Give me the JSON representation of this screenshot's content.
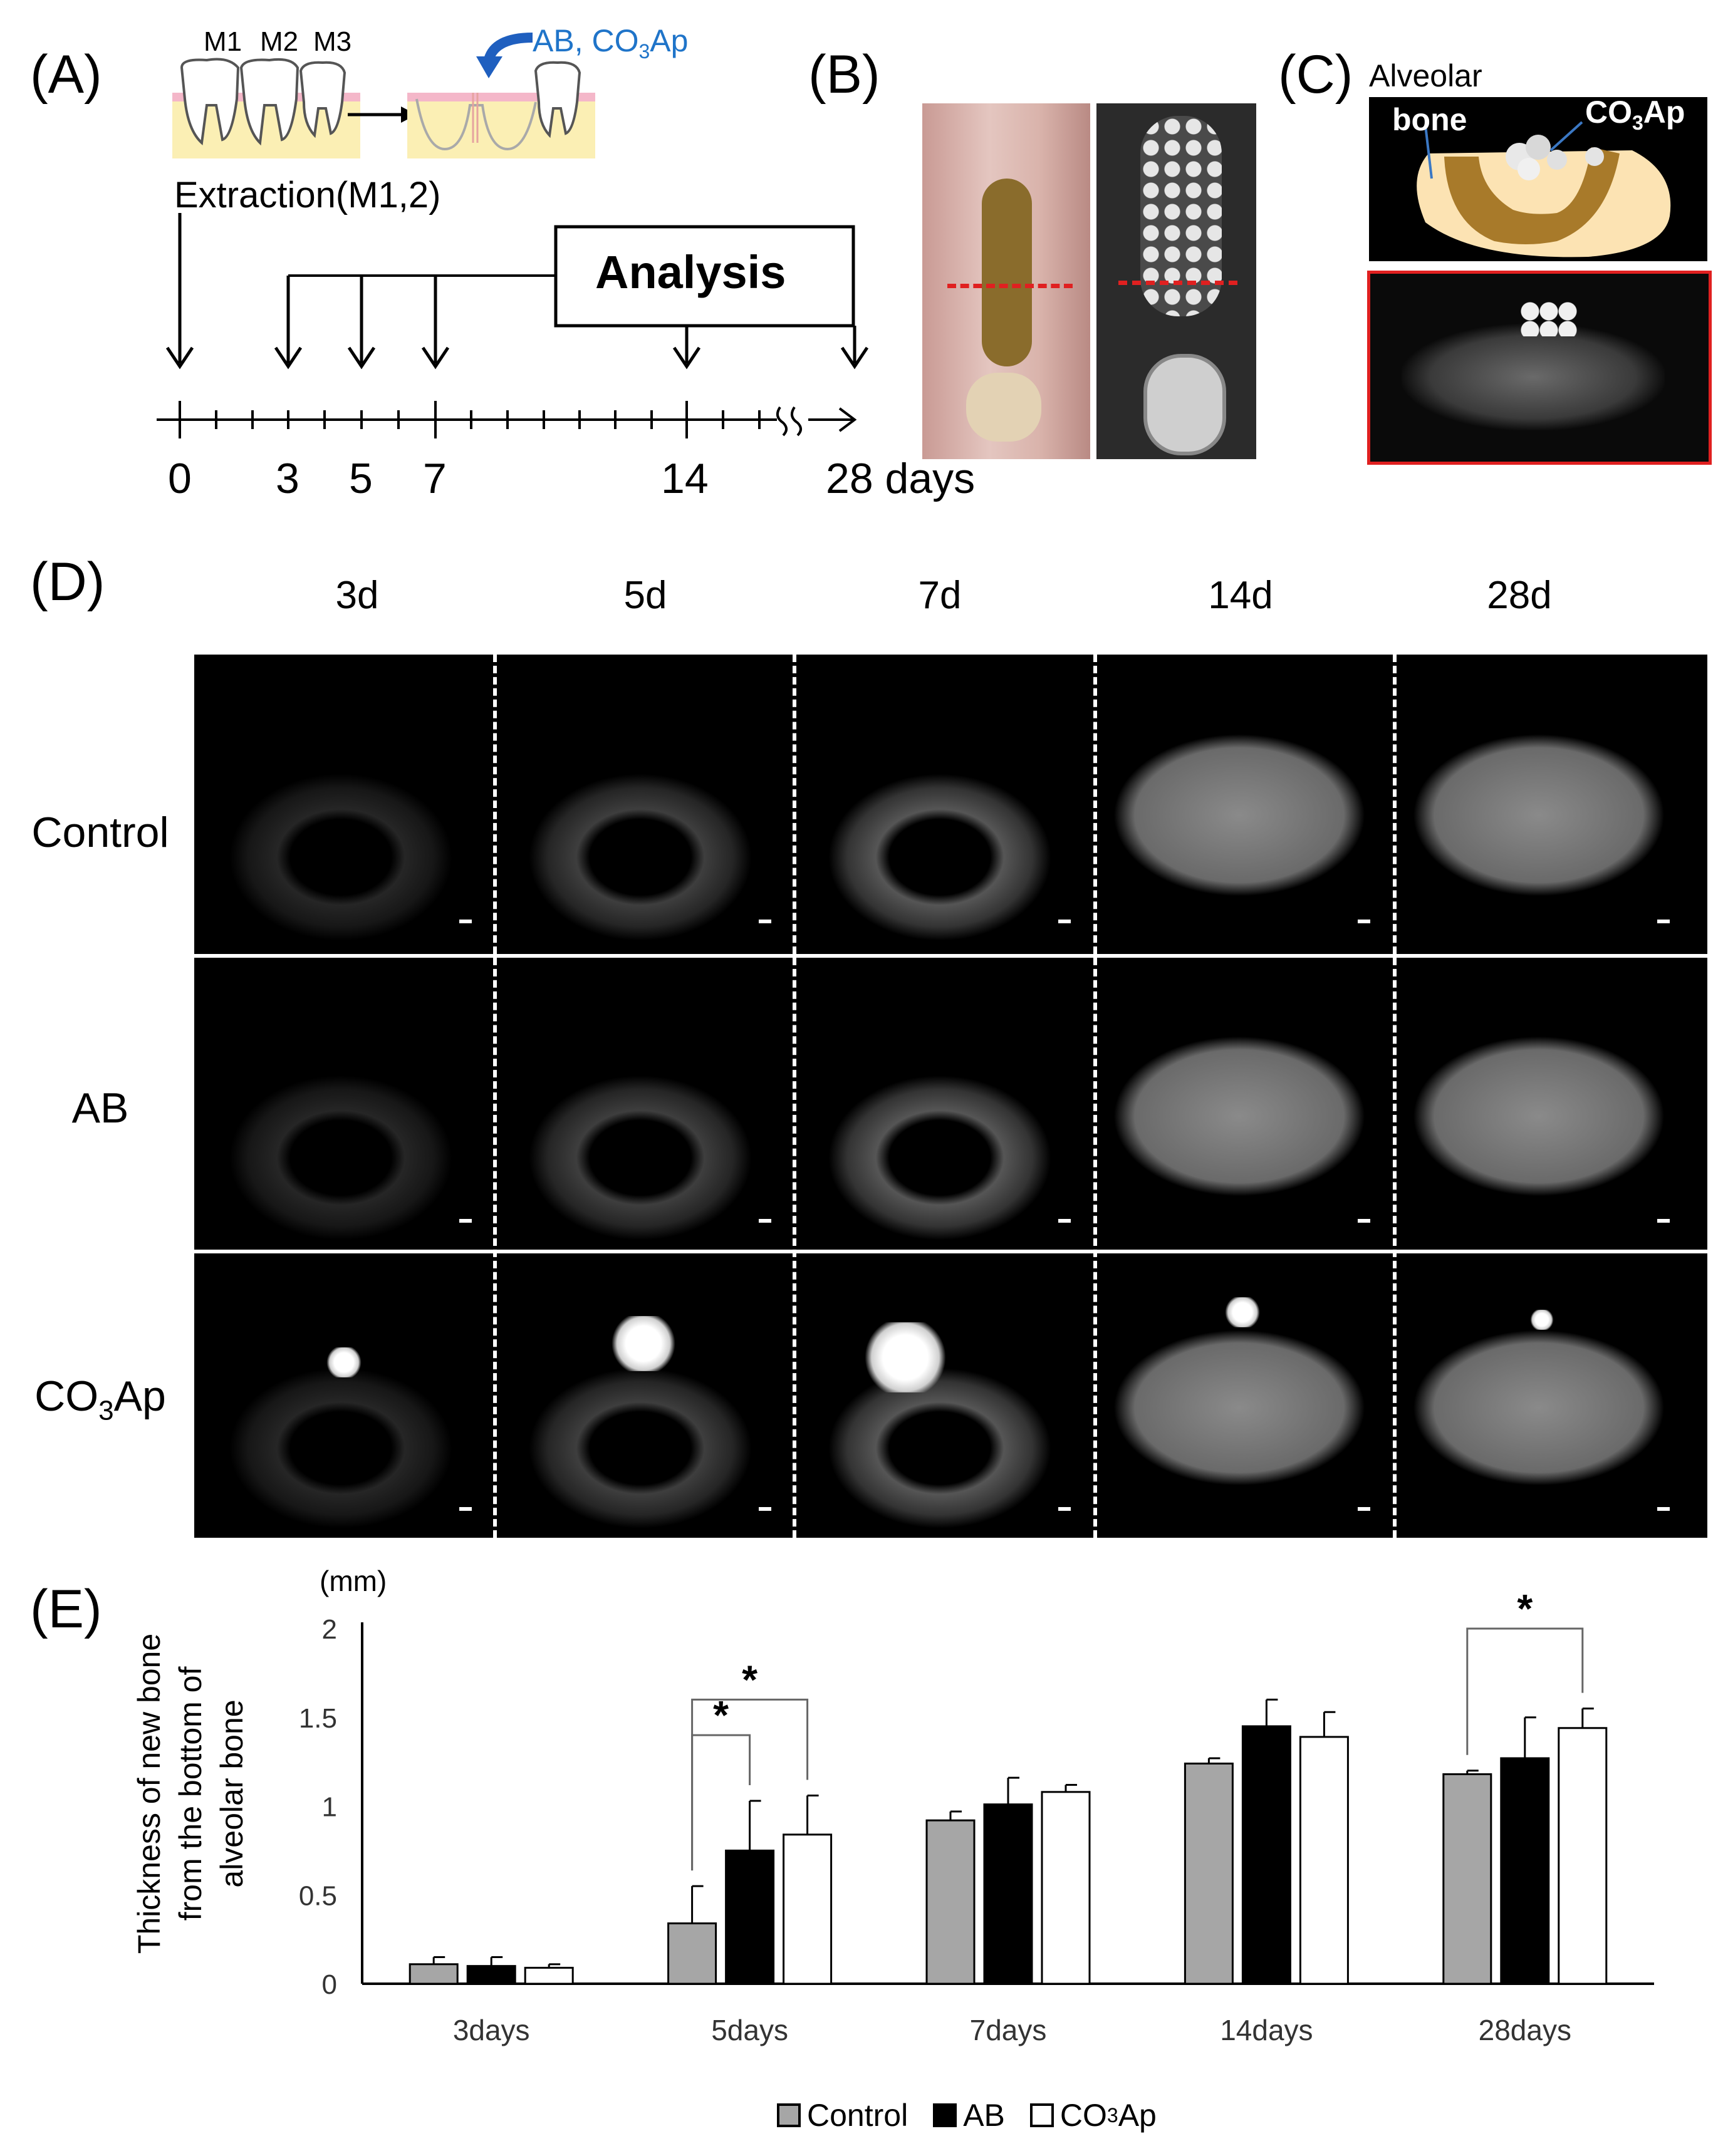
{
  "panels": {
    "a": "(A)",
    "b": "(B)",
    "c": "(C)",
    "d": "(D)",
    "e": "(E)"
  },
  "panel_a": {
    "teeth": [
      "M1",
      "M2",
      "M3"
    ],
    "graft_label": "AB, CO",
    "graft_sub": "3",
    "graft_tail": "Ap",
    "extraction": "Extraction(M1,2)",
    "analysis": "Analysis",
    "ticks": [
      "0",
      "3",
      "5",
      "7",
      "14",
      "28 days"
    ]
  },
  "panel_c": {
    "alveolar": "Alveolar",
    "bone": "bone",
    "co3": "CO",
    "co3_sub": "3",
    "co3_tail": "Ap"
  },
  "panel_d": {
    "columns": [
      "3d",
      "5d",
      "7d",
      "14d",
      "28d"
    ],
    "rows": [
      {
        "label": "Control"
      },
      {
        "label": "AB"
      },
      {
        "label_main": "CO",
        "label_sub": "3",
        "label_tail": "Ap"
      }
    ]
  },
  "chart_data": {
    "type": "bar",
    "unit": "(mm)",
    "ylabel_lines": [
      "Thickness of new bone",
      "from the bottom of",
      "alveolar bone"
    ],
    "categories": [
      "3days",
      "5days",
      "7days",
      "14days",
      "28days"
    ],
    "ylim": [
      0,
      2
    ],
    "yticks": [
      "0",
      "0.5",
      "1",
      "1.5",
      "2"
    ],
    "series": [
      {
        "name": "Control",
        "color": "#a6a6a6",
        "values": [
          0.11,
          0.34,
          0.92,
          1.24,
          1.18
        ],
        "errors": [
          0.04,
          0.21,
          0.05,
          0.03,
          0.02
        ]
      },
      {
        "name": "AB",
        "color": "#000000",
        "values": [
          0.1,
          0.75,
          1.01,
          1.45,
          1.27
        ],
        "errors": [
          0.05,
          0.28,
          0.15,
          0.15,
          0.23
        ]
      },
      {
        "name": "CO3Ap",
        "color": "#ffffff",
        "values": [
          0.09,
          0.84,
          1.08,
          1.39,
          1.44
        ],
        "errors": [
          0.02,
          0.22,
          0.04,
          0.14,
          0.11
        ]
      }
    ],
    "legend": {
      "control": "Control",
      "ab": "AB",
      "co3_main": "CO",
      "co3_sub": "3",
      "co3_tail": "Ap"
    },
    "significance": [
      "*",
      "*",
      "*"
    ],
    "legend_position": "bottom",
    "grid": false
  }
}
